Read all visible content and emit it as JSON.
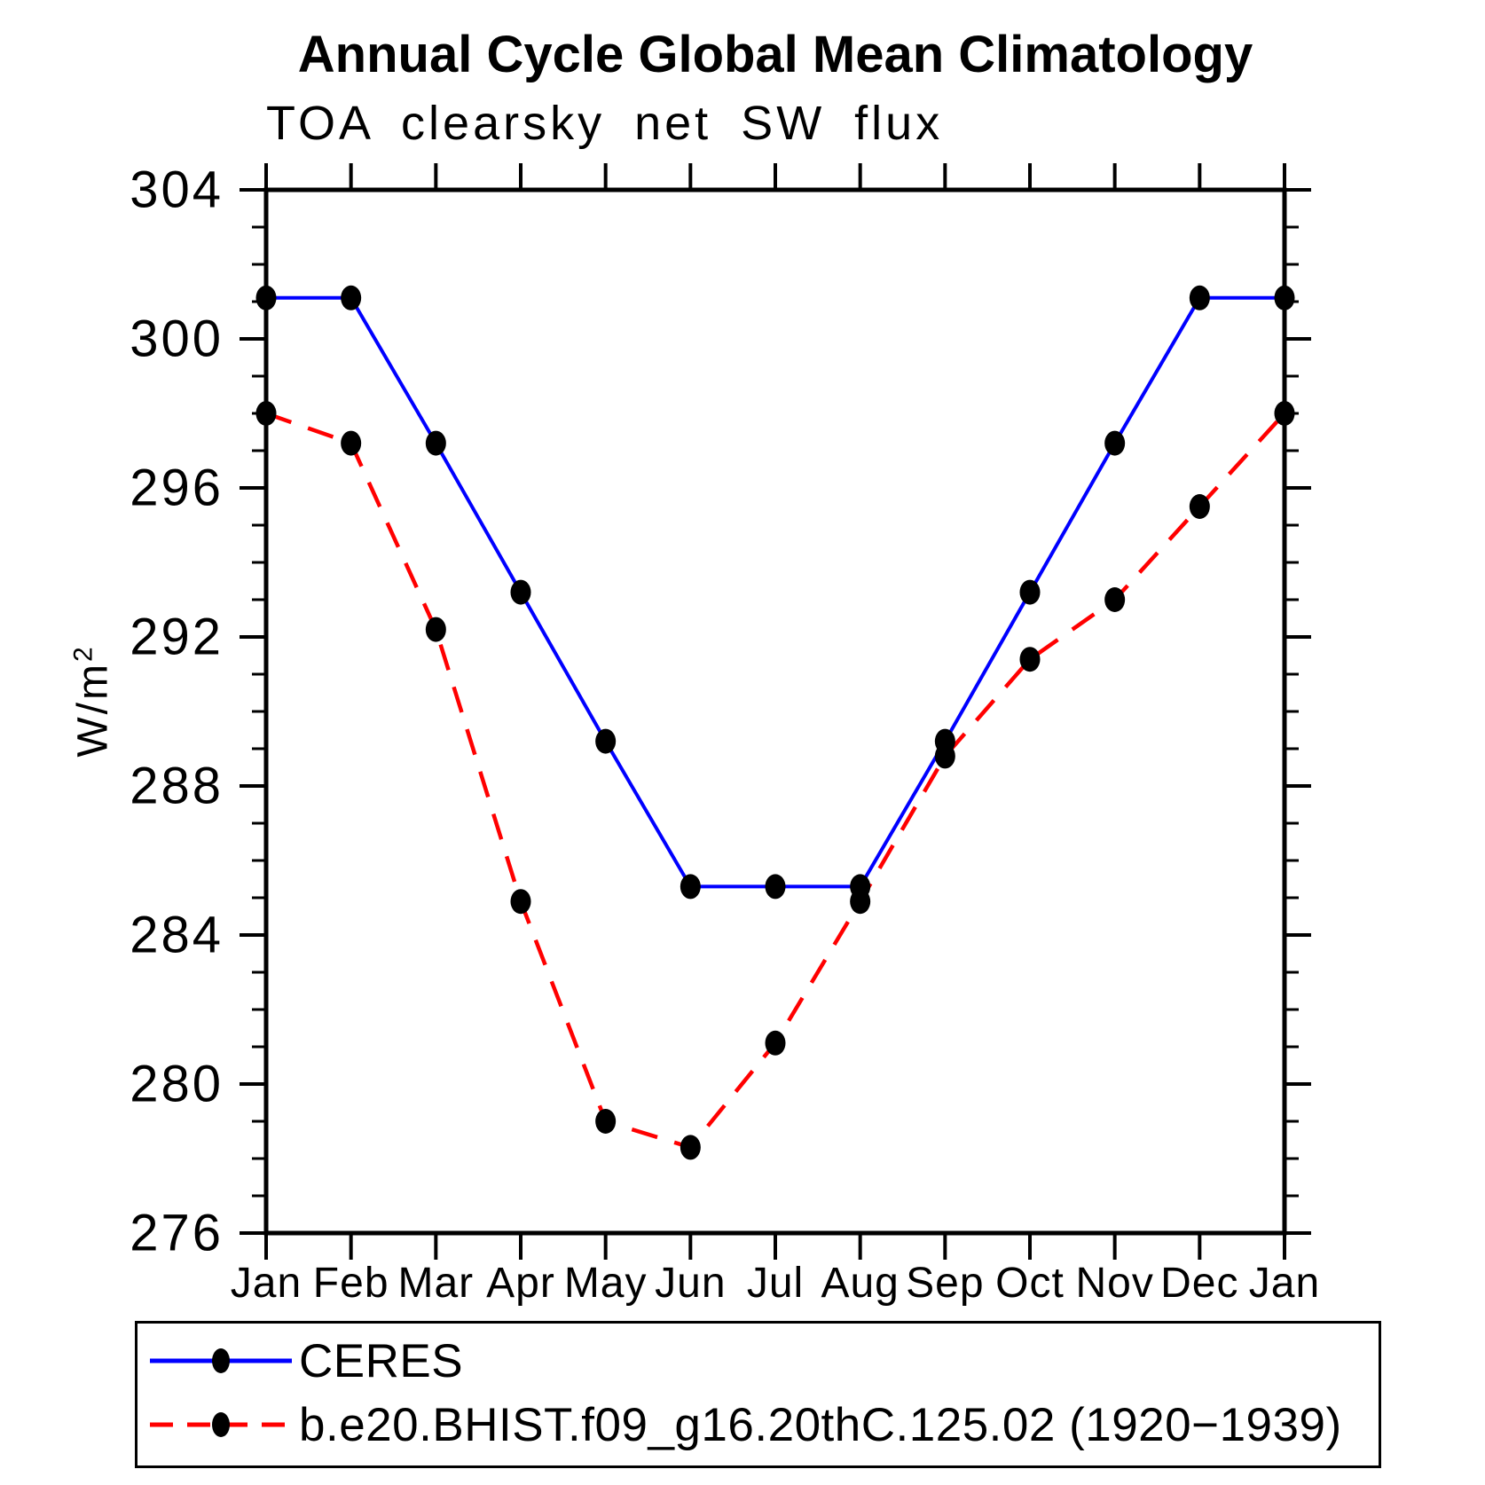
{
  "header": {
    "title": "Annual Cycle Global Mean Climatology",
    "subtitle": "TOA clearsky net SW flux"
  },
  "axes": {
    "ylabel_base": "W/m",
    "ylabel_sup": "2"
  },
  "legend": {
    "entries": [
      {
        "label": "CERES",
        "color": "#0000ff",
        "style": "solid"
      },
      {
        "label": "b.e20.BHIST.f09_g16.20thC.125.02 (1920−1939)",
        "color": "#ff0000",
        "style": "dashed"
      }
    ]
  },
  "chart_data": {
    "type": "line",
    "title": "Annual Cycle Global Mean Climatology",
    "subtitle": "TOA clearsky net SW flux",
    "xlabel": "",
    "ylabel": "W/m^2",
    "categories": [
      "Jan",
      "Feb",
      "Mar",
      "Apr",
      "May",
      "Jun",
      "Jul",
      "Aug",
      "Sep",
      "Oct",
      "Nov",
      "Dec",
      "Jan"
    ],
    "ylim": [
      276,
      304
    ],
    "y_major_ticks": [
      276,
      280,
      284,
      288,
      292,
      296,
      300,
      304
    ],
    "y_tick_labels": [
      "276",
      "280",
      "284",
      "288",
      "292",
      "296",
      "300",
      "304"
    ],
    "y_minor_step": 1,
    "grid": false,
    "legend_position": "bottom",
    "marker": {
      "shape": "filled-circle",
      "color": "#000000"
    },
    "series": [
      {
        "name": "CERES",
        "color": "#0000ff",
        "line_style": "solid",
        "values": [
          301.1,
          301.1,
          297.2,
          293.2,
          289.2,
          285.3,
          285.3,
          285.3,
          289.2,
          293.2,
          297.2,
          301.1,
          301.1
        ]
      },
      {
        "name": "b.e20.BHIST.f09_g16.20thC.125.02 (1920−1939)",
        "color": "#ff0000",
        "line_style": "dashed",
        "values": [
          298.0,
          297.2,
          292.2,
          284.9,
          279.0,
          278.3,
          281.1,
          284.9,
          288.8,
          291.4,
          293.0,
          295.5,
          298.0
        ]
      }
    ]
  }
}
